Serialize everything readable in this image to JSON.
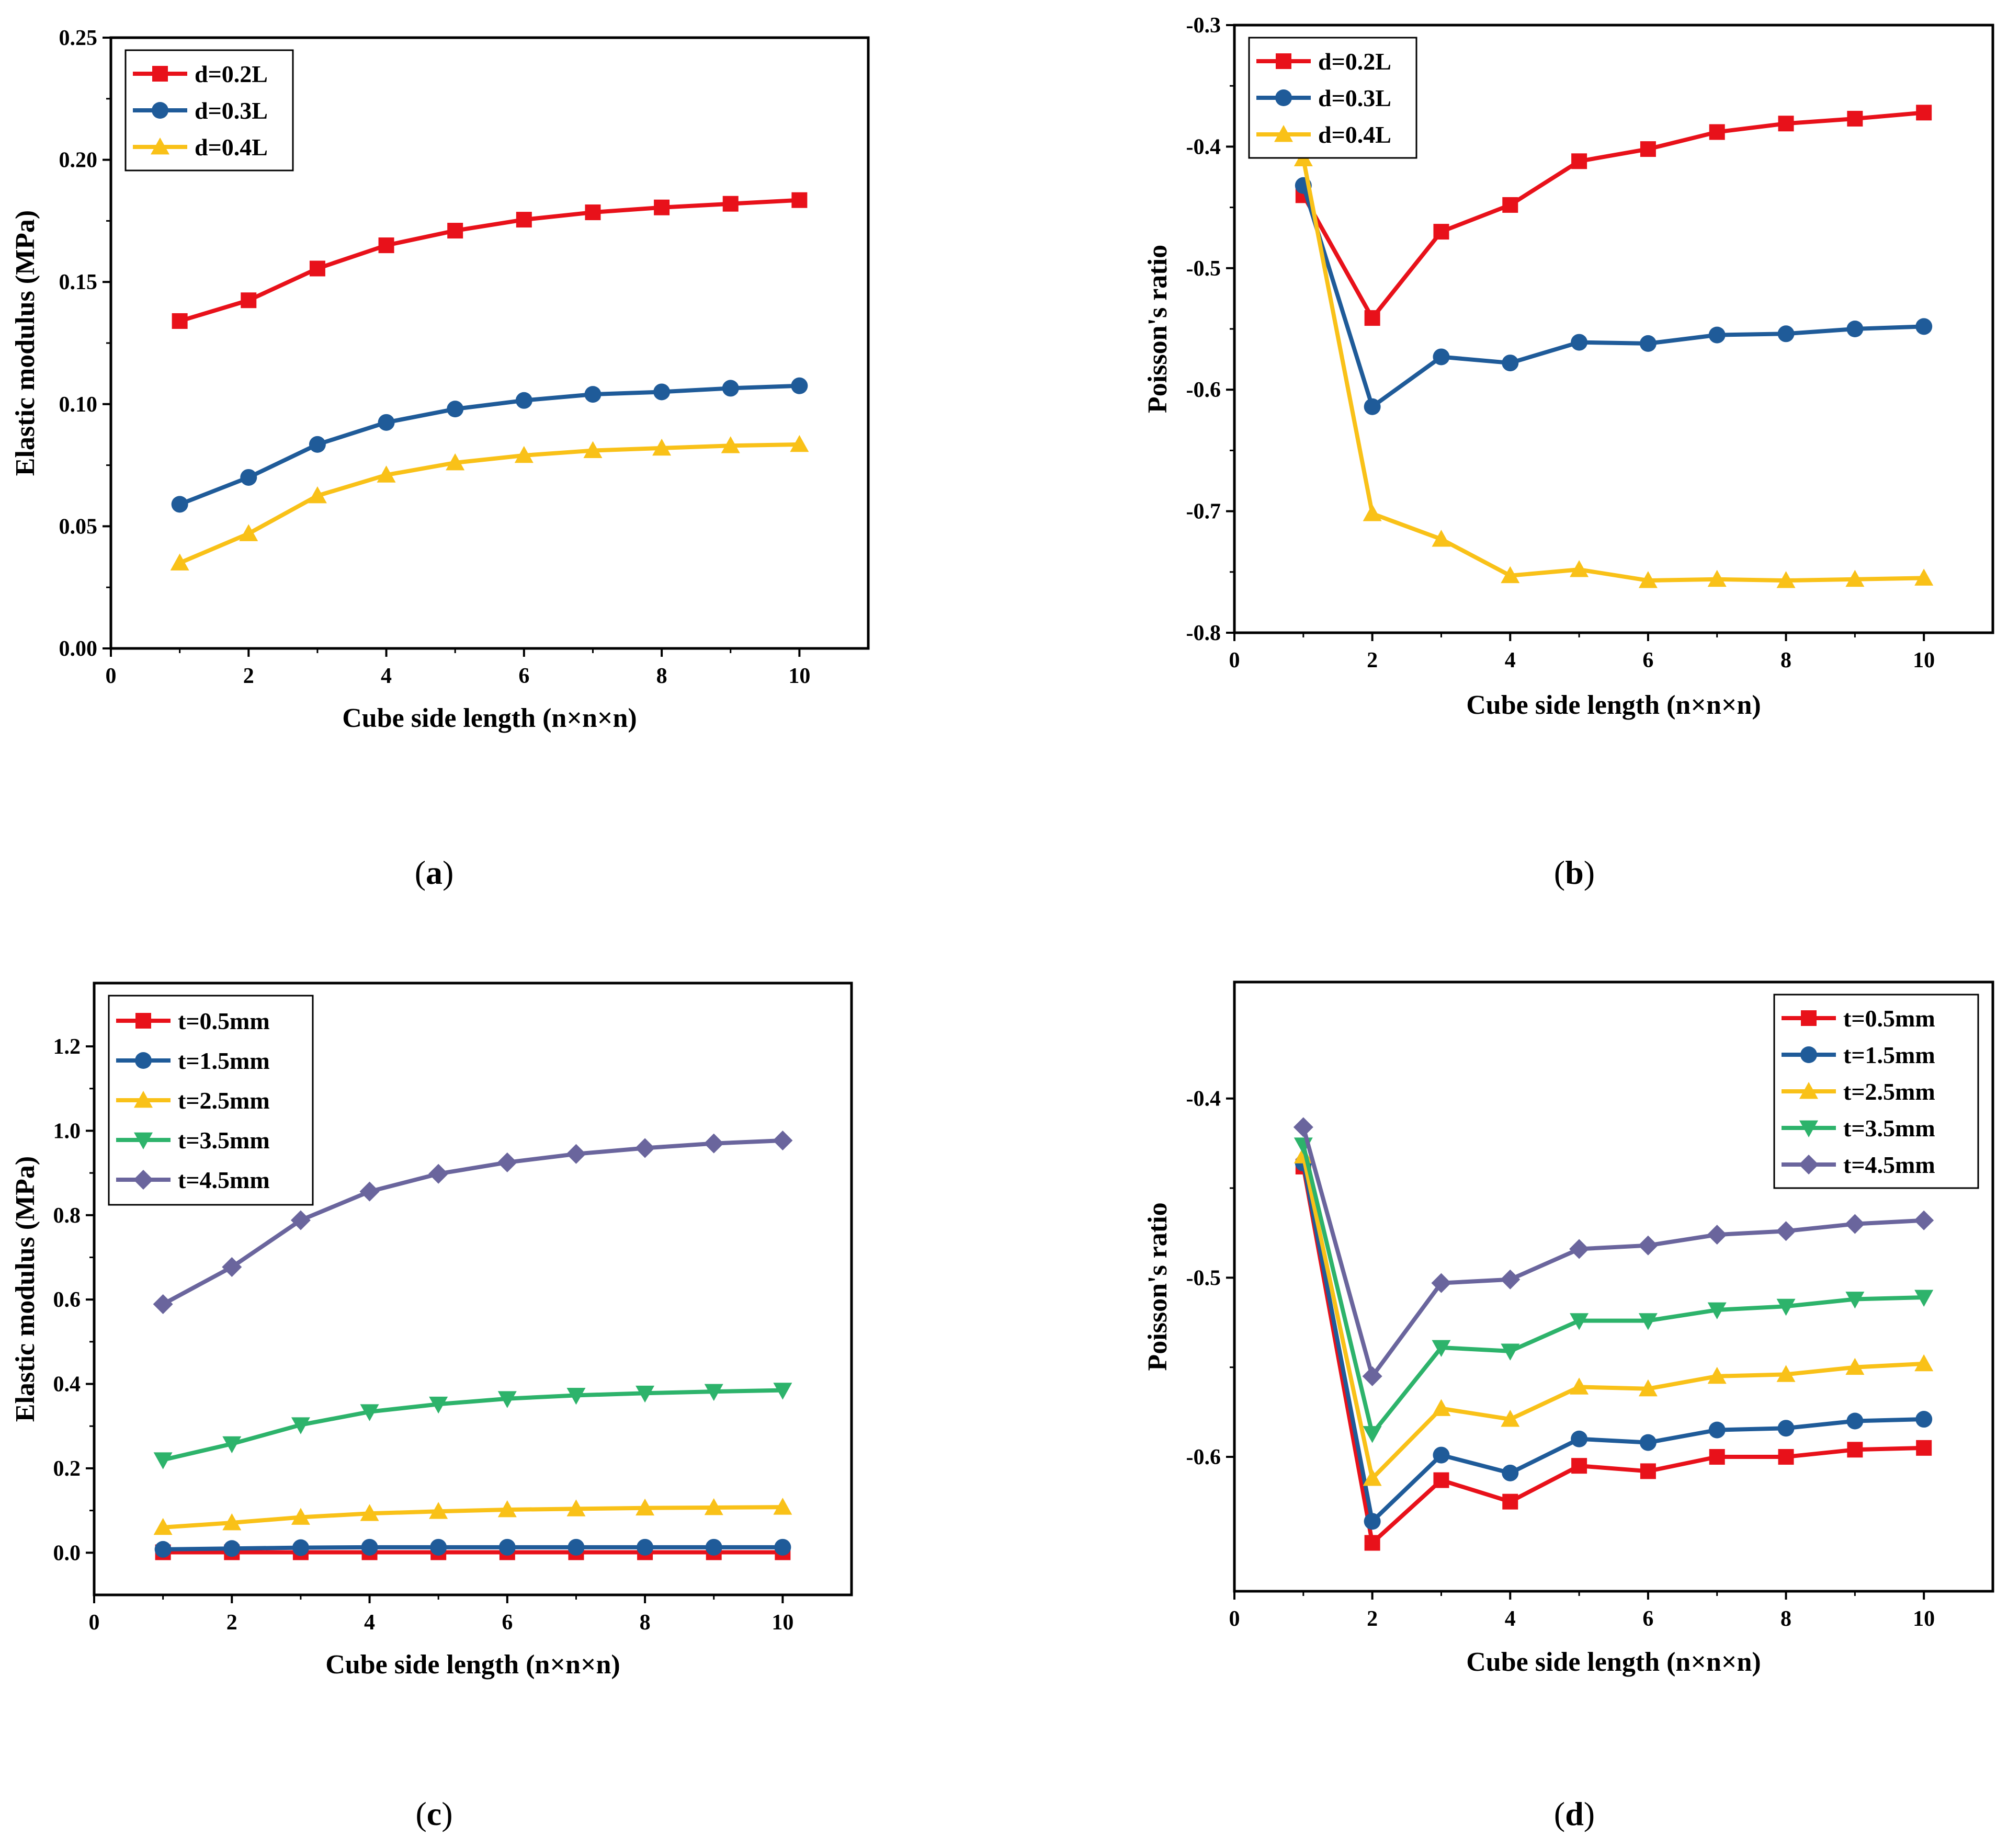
{
  "chart_data": [
    {
      "type": "line",
      "caption": "a",
      "xlabel": "Cube side length (n×n×n)",
      "ylabel": "Elastic modulus (MPa)",
      "xlim": [
        0,
        11
      ],
      "ylim": [
        0.0,
        0.25
      ],
      "xticks": [
        0,
        2,
        4,
        6,
        8,
        10
      ],
      "yticks": [
        0.0,
        0.05,
        0.1,
        0.15,
        0.2,
        0.25
      ],
      "ytick_labels": [
        "0.00",
        "0.05",
        "0.10",
        "0.15",
        "0.20",
        "0.25"
      ],
      "legend_position": "top-left",
      "x": [
        1,
        2,
        3,
        4,
        5,
        6,
        7,
        8,
        9,
        10
      ],
      "series": [
        {
          "name": "d=0.2L",
          "color": "#e8111a",
          "marker": "square",
          "values": [
            0.134,
            0.1425,
            0.1555,
            0.165,
            0.171,
            0.1755,
            0.1785,
            0.1805,
            0.182,
            0.1835
          ]
        },
        {
          "name": "d=0.3L",
          "color": "#1f5b99",
          "marker": "circle",
          "values": [
            0.059,
            0.07,
            0.0835,
            0.0925,
            0.098,
            0.1015,
            0.104,
            0.105,
            0.1065,
            0.1075
          ]
        },
        {
          "name": "d=0.4L",
          "color": "#f9c118",
          "marker": "triangle-up",
          "values": [
            0.035,
            0.047,
            0.0625,
            0.071,
            0.076,
            0.079,
            0.081,
            0.082,
            0.083,
            0.0835
          ]
        }
      ]
    },
    {
      "type": "line",
      "caption": "b",
      "xlabel": "Cube side length (n×n×n)",
      "ylabel": "Poisson's ratio",
      "xlim": [
        0,
        11
      ],
      "ylim": [
        -0.8,
        -0.3
      ],
      "xticks": [
        0,
        2,
        4,
        6,
        8,
        10
      ],
      "yticks": [
        -0.8,
        -0.7,
        -0.6,
        -0.5,
        -0.4,
        -0.3
      ],
      "ytick_labels": [
        "-0.8",
        "-0.7",
        "-0.6",
        "-0.5",
        "-0.4",
        "-0.3"
      ],
      "legend_position": "top-left",
      "x": [
        1,
        2,
        3,
        4,
        5,
        6,
        7,
        8,
        9,
        10
      ],
      "series": [
        {
          "name": "d=0.2L",
          "color": "#e8111a",
          "marker": "square",
          "values": [
            -0.44,
            -0.541,
            -0.47,
            -0.448,
            -0.412,
            -0.402,
            -0.388,
            -0.381,
            -0.377,
            -0.372
          ]
        },
        {
          "name": "d=0.3L",
          "color": "#1f5b99",
          "marker": "circle",
          "values": [
            -0.432,
            -0.614,
            -0.573,
            -0.578,
            -0.561,
            -0.562,
            -0.555,
            -0.554,
            -0.55,
            -0.548
          ]
        },
        {
          "name": "d=0.4L",
          "color": "#f9c118",
          "marker": "triangle-up",
          "values": [
            -0.41,
            -0.702,
            -0.723,
            -0.753,
            -0.748,
            -0.757,
            -0.756,
            -0.757,
            -0.756,
            -0.755
          ]
        }
      ]
    },
    {
      "type": "line",
      "caption": "c",
      "xlabel": "Cube side length (n×n×n)",
      "ylabel": "Elastic modulus (MPa)",
      "xlim": [
        0,
        11
      ],
      "ylim": [
        -0.1,
        1.35
      ],
      "xticks": [
        0,
        2,
        4,
        6,
        8,
        10
      ],
      "yticks": [
        0.0,
        0.2,
        0.4,
        0.6,
        0.8,
        1.0,
        1.2
      ],
      "ytick_labels": [
        "0.0",
        "0.2",
        "0.4",
        "0.6",
        "0.8",
        "1.0",
        "1.2"
      ],
      "legend_position": "top-left",
      "x": [
        1,
        2,
        3,
        4,
        5,
        6,
        7,
        8,
        9,
        10
      ],
      "series": [
        {
          "name": "t=0.5mm",
          "color": "#e8111a",
          "marker": "square",
          "values": [
            0.001,
            0.001,
            0.001,
            0.001,
            0.001,
            0.001,
            0.001,
            0.001,
            0.001,
            0.001
          ]
        },
        {
          "name": "t=1.5mm",
          "color": "#1f5b99",
          "marker": "circle",
          "values": [
            0.008,
            0.01,
            0.012,
            0.013,
            0.013,
            0.013,
            0.013,
            0.013,
            0.013,
            0.013
          ]
        },
        {
          "name": "t=2.5mm",
          "color": "#f9c118",
          "marker": "triangle-up",
          "values": [
            0.06,
            0.071,
            0.084,
            0.093,
            0.098,
            0.102,
            0.104,
            0.106,
            0.107,
            0.108
          ]
        },
        {
          "name": "t=3.5mm",
          "color": "#2db36b",
          "marker": "triangle-down",
          "values": [
            0.22,
            0.258,
            0.303,
            0.334,
            0.352,
            0.365,
            0.373,
            0.378,
            0.382,
            0.385
          ]
        },
        {
          "name": "t=4.5mm",
          "color": "#6a659d",
          "marker": "diamond",
          "values": [
            0.589,
            0.677,
            0.788,
            0.856,
            0.898,
            0.925,
            0.945,
            0.959,
            0.97,
            0.977
          ]
        }
      ]
    },
    {
      "type": "line",
      "caption": "d",
      "xlabel": "Cube side length (n×n×n)",
      "ylabel": "Poisson's ratio",
      "xlim": [
        0,
        11
      ],
      "ylim": [
        -0.675,
        -0.335
      ],
      "xticks": [
        0,
        2,
        4,
        6,
        8,
        10
      ],
      "yticks": [
        -0.6,
        -0.5,
        -0.4
      ],
      "ytick_labels": [
        "-0.6",
        "-0.5",
        "-0.4"
      ],
      "legend_position": "top-right",
      "x": [
        1,
        2,
        3,
        4,
        5,
        6,
        7,
        8,
        9,
        10
      ],
      "series": [
        {
          "name": "t=0.5mm",
          "color": "#e8111a",
          "marker": "square",
          "values": [
            -0.438,
            -0.648,
            -0.613,
            -0.625,
            -0.605,
            -0.608,
            -0.6,
            -0.6,
            -0.596,
            -0.595
          ]
        },
        {
          "name": "t=1.5mm",
          "color": "#1f5b99",
          "marker": "circle",
          "values": [
            -0.436,
            -0.636,
            -0.599,
            -0.609,
            -0.59,
            -0.592,
            -0.585,
            -0.584,
            -0.58,
            -0.579
          ]
        },
        {
          "name": "t=2.5mm",
          "color": "#f9c118",
          "marker": "triangle-up",
          "values": [
            -0.432,
            -0.612,
            -0.573,
            -0.579,
            -0.561,
            -0.562,
            -0.555,
            -0.554,
            -0.55,
            -0.548
          ]
        },
        {
          "name": "t=3.5mm",
          "color": "#2db36b",
          "marker": "triangle-down",
          "values": [
            -0.426,
            -0.587,
            -0.539,
            -0.541,
            -0.524,
            -0.524,
            -0.518,
            -0.516,
            -0.512,
            -0.511
          ]
        },
        {
          "name": "t=4.5mm",
          "color": "#6a659d",
          "marker": "diamond",
          "values": [
            -0.416,
            -0.555,
            -0.503,
            -0.501,
            -0.484,
            -0.482,
            -0.476,
            -0.474,
            -0.47,
            -0.468
          ]
        }
      ]
    }
  ]
}
